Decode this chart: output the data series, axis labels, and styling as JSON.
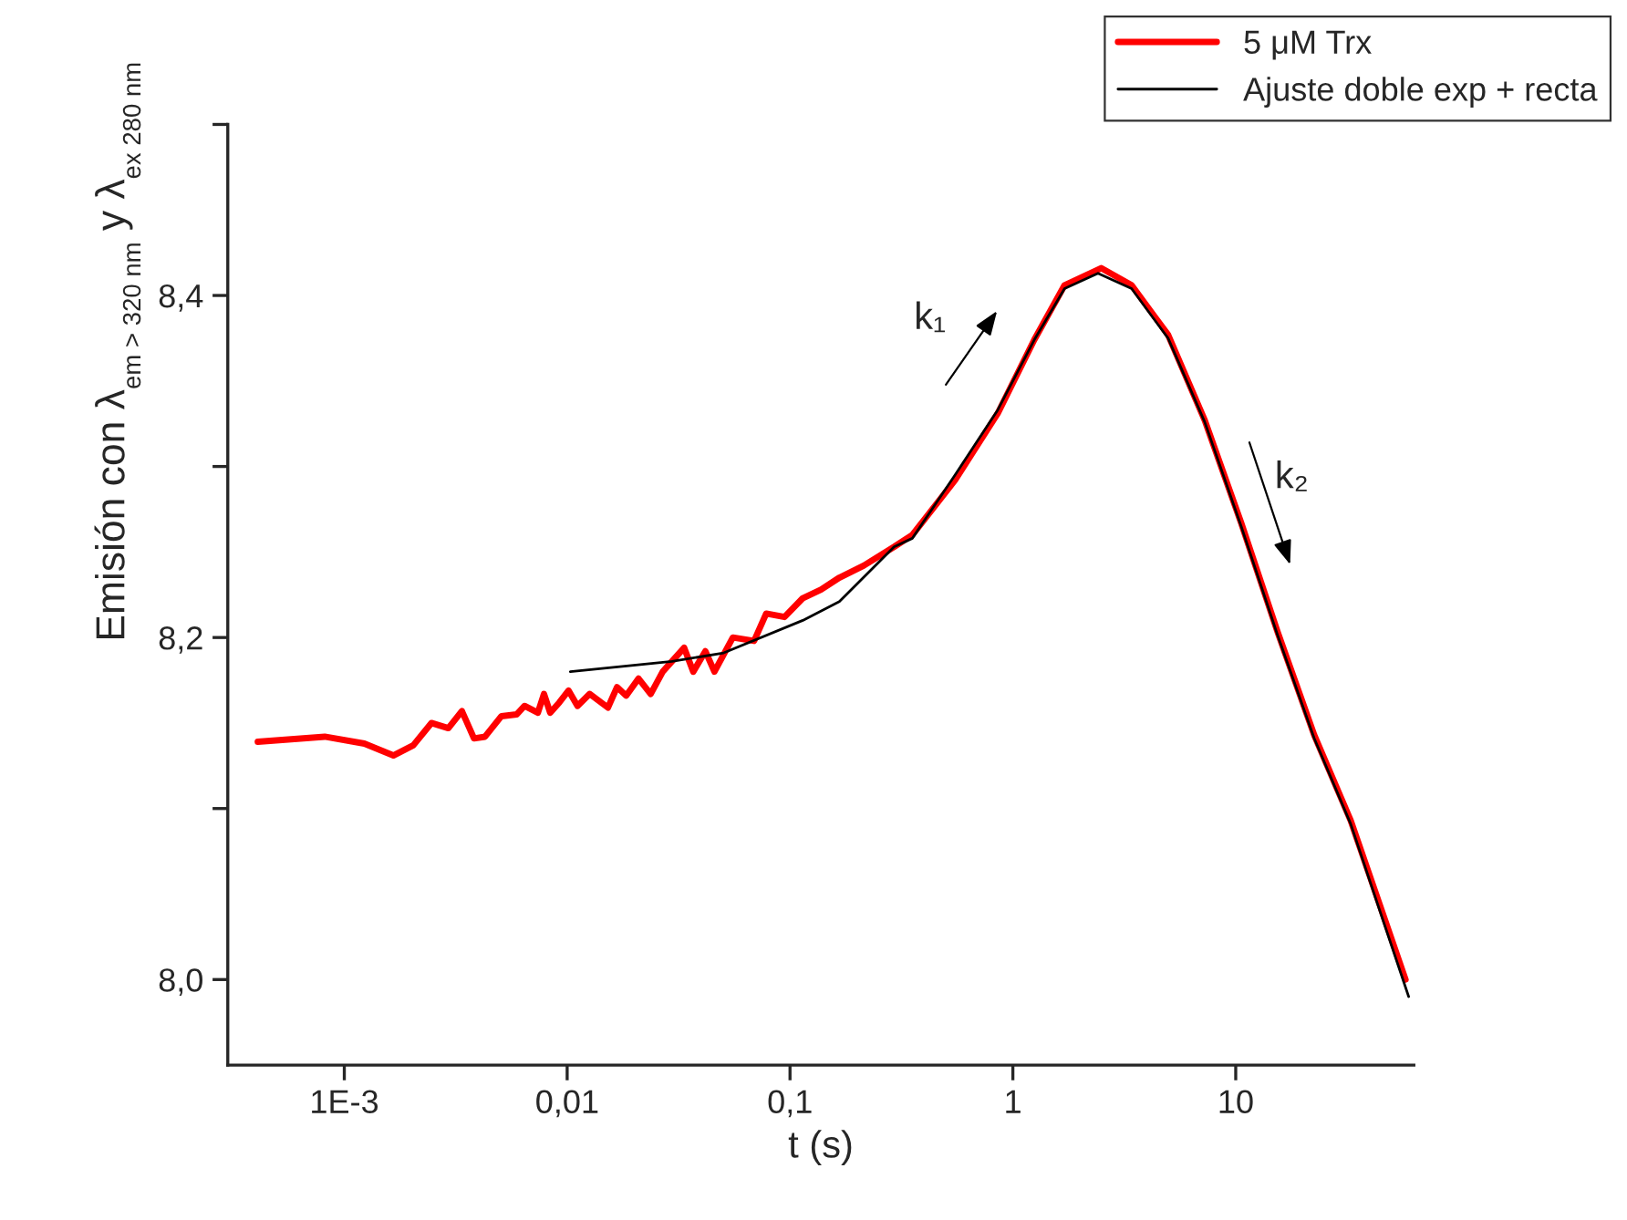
{
  "chart_data": {
    "type": "line",
    "xlabel": "t (s)",
    "ylabel": "Emisión con λ$_{em > 320 nm}$ y λ$_{ex 280 nm}$",
    "log": "x",
    "xlim": [
      0.0003,
      63
    ],
    "ylim": [
      7.95,
      8.5
    ],
    "xticks": [
      {
        "value": 0.001,
        "label": "1E-3"
      },
      {
        "value": 0.01,
        "label": "0,01"
      },
      {
        "value": 0.1,
        "label": "0,1"
      },
      1,
      10
    ],
    "yticks": [
      {
        "value": 8.0,
        "label": "8,0"
      },
      {
        "value": 8.1,
        "label": null
      },
      {
        "value": 8.2,
        "label": "8,2"
      },
      {
        "value": 8.3,
        "label": null
      },
      {
        "value": 8.4,
        "label": "8,4"
      },
      {
        "value": 8.5,
        "label": null
      }
    ],
    "grid": false,
    "legend": "top right",
    "annotations": [
      "k₁",
      "k₂"
    ],
    "series": [
      {
        "name": "5 μM Trx",
        "color": "#ff0000",
        "x": [
          0.000409,
          0.000817,
          0.00123,
          0.00166,
          0.00204,
          0.00246,
          0.00293,
          0.00337,
          0.00382,
          0.00428,
          0.00507,
          0.00593,
          0.00644,
          0.00739,
          0.00787,
          0.00839,
          0.00922,
          0.01014,
          0.01113,
          0.01262,
          0.01524,
          0.01674,
          0.0184,
          0.02089,
          0.0237,
          0.02684,
          0.0335,
          0.0368,
          0.0417,
          0.0458,
          0.0554,
          0.069,
          0.0782,
          0.0945,
          0.1141,
          0.1378,
          0.1665,
          0.214,
          0.293,
          0.354,
          0.55,
          0.855,
          1.247,
          1.706,
          2.49,
          3.41,
          4.97,
          7.26,
          10.58,
          15.44,
          22.5,
          32.8,
          57.8
        ],
        "values": [
          8.139,
          8.142,
          8.138,
          8.131,
          8.137,
          8.15,
          8.147,
          8.157,
          8.141,
          8.142,
          8.154,
          8.155,
          8.16,
          8.156,
          8.167,
          8.156,
          8.162,
          8.169,
          8.16,
          8.167,
          8.159,
          8.171,
          8.166,
          8.176,
          8.167,
          8.18,
          8.194,
          8.18,
          8.192,
          8.18,
          8.2,
          8.198,
          8.214,
          8.212,
          8.223,
          8.228,
          8.235,
          8.242,
          8.253,
          8.26,
          8.292,
          8.331,
          8.374,
          8.406,
          8.416,
          8.406,
          8.377,
          8.327,
          8.267,
          8.203,
          8.143,
          8.093,
          8.0
        ]
      },
      {
        "name": "Ajuste doble exp + recta",
        "color": "#000000",
        "x": [
          0.01033,
          0.0295,
          0.0504,
          0.1141,
          0.1665,
          0.293,
          0.354,
          0.55,
          0.855,
          1.247,
          1.706,
          2.41,
          3.41,
          4.97,
          7.26,
          10.58,
          15.44,
          22.5,
          32.8,
          59.7
        ],
        "values": [
          8.18,
          8.186,
          8.191,
          8.21,
          8.221,
          8.253,
          8.258,
          8.295,
          8.333,
          8.374,
          8.404,
          8.413,
          8.404,
          8.375,
          8.326,
          8.265,
          8.201,
          8.141,
          8.091,
          7.99
        ]
      }
    ]
  }
}
